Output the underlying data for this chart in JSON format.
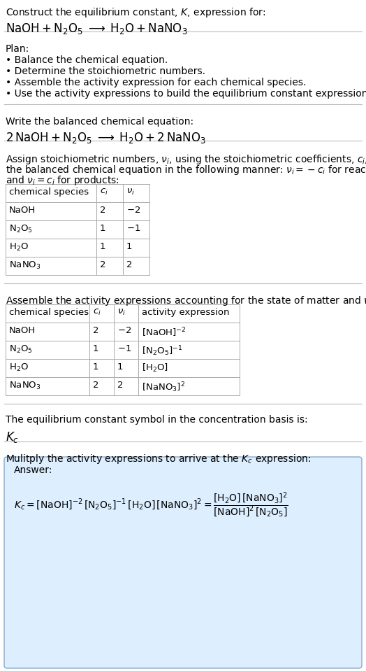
{
  "bg_color": "#ffffff",
  "text_color": "#000000",
  "line_color": "#cccccc",
  "answer_box_color": "#ddeeff",
  "answer_box_border": "#88aacc",
  "title_line1": "Construct the equilibrium constant, $K$, expression for:",
  "title_line2": "$\\mathrm{NaOH} + \\mathrm{N_2O_5} \\;\\longrightarrow\\; \\mathrm{H_2O} + \\mathrm{NaNO_3}$",
  "plan_header": "Plan:",
  "plan_items": [
    "• Balance the chemical equation.",
    "• Determine the stoichiometric numbers.",
    "• Assemble the activity expression for each chemical species.",
    "• Use the activity expressions to build the equilibrium constant expression."
  ],
  "balanced_header": "Write the balanced chemical equation:",
  "balanced_eq": "$2\\,\\mathrm{NaOH} + \\mathrm{N_2O_5} \\;\\longrightarrow\\; \\mathrm{H_2O} + 2\\,\\mathrm{NaNO_3}$",
  "stoich_intro1": "Assign stoichiometric numbers, $\\nu_i$, using the stoichiometric coefficients, $c_i$, from",
  "stoich_intro2": "the balanced chemical equation in the following manner: $\\nu_i = -c_i$ for reactants",
  "stoich_intro3": "and $\\nu_i = c_i$ for products:",
  "stoich_table_headers": [
    "chemical species",
    "$c_i$",
    "$\\nu_i$"
  ],
  "stoich_table_rows": [
    [
      "NaOH",
      "2",
      "$-2$"
    ],
    [
      "$\\mathrm{N_2O_5}$",
      "1",
      "$-1$"
    ],
    [
      "$\\mathrm{H_2O}$",
      "1",
      "1"
    ],
    [
      "$\\mathrm{NaNO_3}$",
      "2",
      "2"
    ]
  ],
  "activity_header": "Assemble the activity expressions accounting for the state of matter and $\\nu_i$:",
  "activity_table_headers": [
    "chemical species",
    "$c_i$",
    "$\\nu_i$",
    "activity expression"
  ],
  "activity_table_rows": [
    [
      "NaOH",
      "2",
      "$-2$",
      "$[\\mathrm{NaOH}]^{-2}$"
    ],
    [
      "$\\mathrm{N_2O_5}$",
      "1",
      "$-1$",
      "$[\\mathrm{N_2O_5}]^{-1}$"
    ],
    [
      "$\\mathrm{H_2O}$",
      "1",
      "1",
      "$[\\mathrm{H_2O}]$"
    ],
    [
      "$\\mathrm{NaNO_3}$",
      "2",
      "2",
      "$[\\mathrm{NaNO_3}]^2$"
    ]
  ],
  "kc_header": "The equilibrium constant symbol in the concentration basis is:",
  "kc_symbol": "$K_c$",
  "multiply_header": "Mulitply the activity expressions to arrive at the $K_c$ expression:",
  "answer_label": "Answer:",
  "answer_eq_left": "$K_c = [\\mathrm{NaOH}]^{-2}\\,[\\mathrm{N_2O_5}]^{-1}\\,[\\mathrm{H_2O}]\\,[\\mathrm{NaNO_3}]^2 = \\dfrac{[\\mathrm{H_2O}]\\,[\\mathrm{NaNO_3}]^2}{[\\mathrm{NaOH}]^2\\,[\\mathrm{N_2O_5}]}$"
}
